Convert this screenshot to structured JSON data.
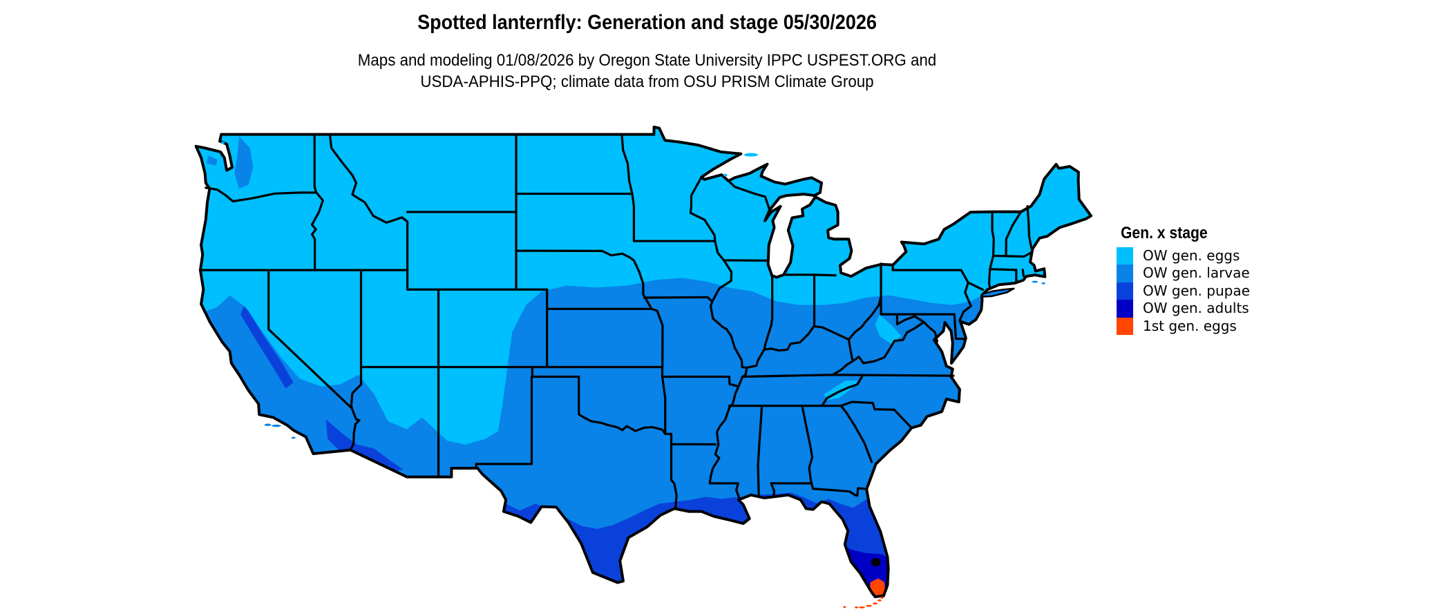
{
  "header": {
    "title": "Spotted lanternfly: Generation and stage 05/30/2026",
    "subtitle_line1": "Maps and modeling 01/08/2026 by Oregon State University IPPC USPEST.ORG and",
    "subtitle_line2": "USDA-APHIS-PPQ; climate data from OSU PRISM Climate Group"
  },
  "legend": {
    "title": "Gen. x stage",
    "items": [
      {
        "label": "OW gen. eggs",
        "color": "#00BFFF"
      },
      {
        "label": "OW gen. larvae",
        "color": "#0983E8"
      },
      {
        "label": "OW gen. pupae",
        "color": "#0B41DB"
      },
      {
        "label": "OW gen. adults",
        "color": "#0000C4"
      },
      {
        "label": "1st gen. eggs",
        "color": "#FF4500"
      }
    ]
  },
  "map_data": {
    "type": "choropleth",
    "region": "Contiguous United States with state boundaries",
    "border_color": "#000000",
    "background_color": "#FFFFFF",
    "stage_regions": [
      {
        "stage": "OW gen. eggs",
        "extent": "Northern tier and high elevations: Pacific Northwest, northern Rockies, northern Plains, upper Midwest, Great Lakes, Northeast, central Appalachians"
      },
      {
        "stage": "OW gen. larvae",
        "extent": "Broad central/southern band: most of California, Southwest lowlands, central and southern Plains, Midwest south of about 41N, Mid-Atlantic, Southeast"
      },
      {
        "stage": "OW gen. pupae",
        "extent": "Southern Texas, Gulf Coast strip, southwestern Arizona deserts, Sierra Nevada slopes, most of the Florida peninsula"
      },
      {
        "stage": "OW gen. adults",
        "extent": "South Florida"
      },
      {
        "stage": "1st gen. eggs",
        "extent": "Southern tip of Florida and the Florida Keys"
      }
    ]
  }
}
